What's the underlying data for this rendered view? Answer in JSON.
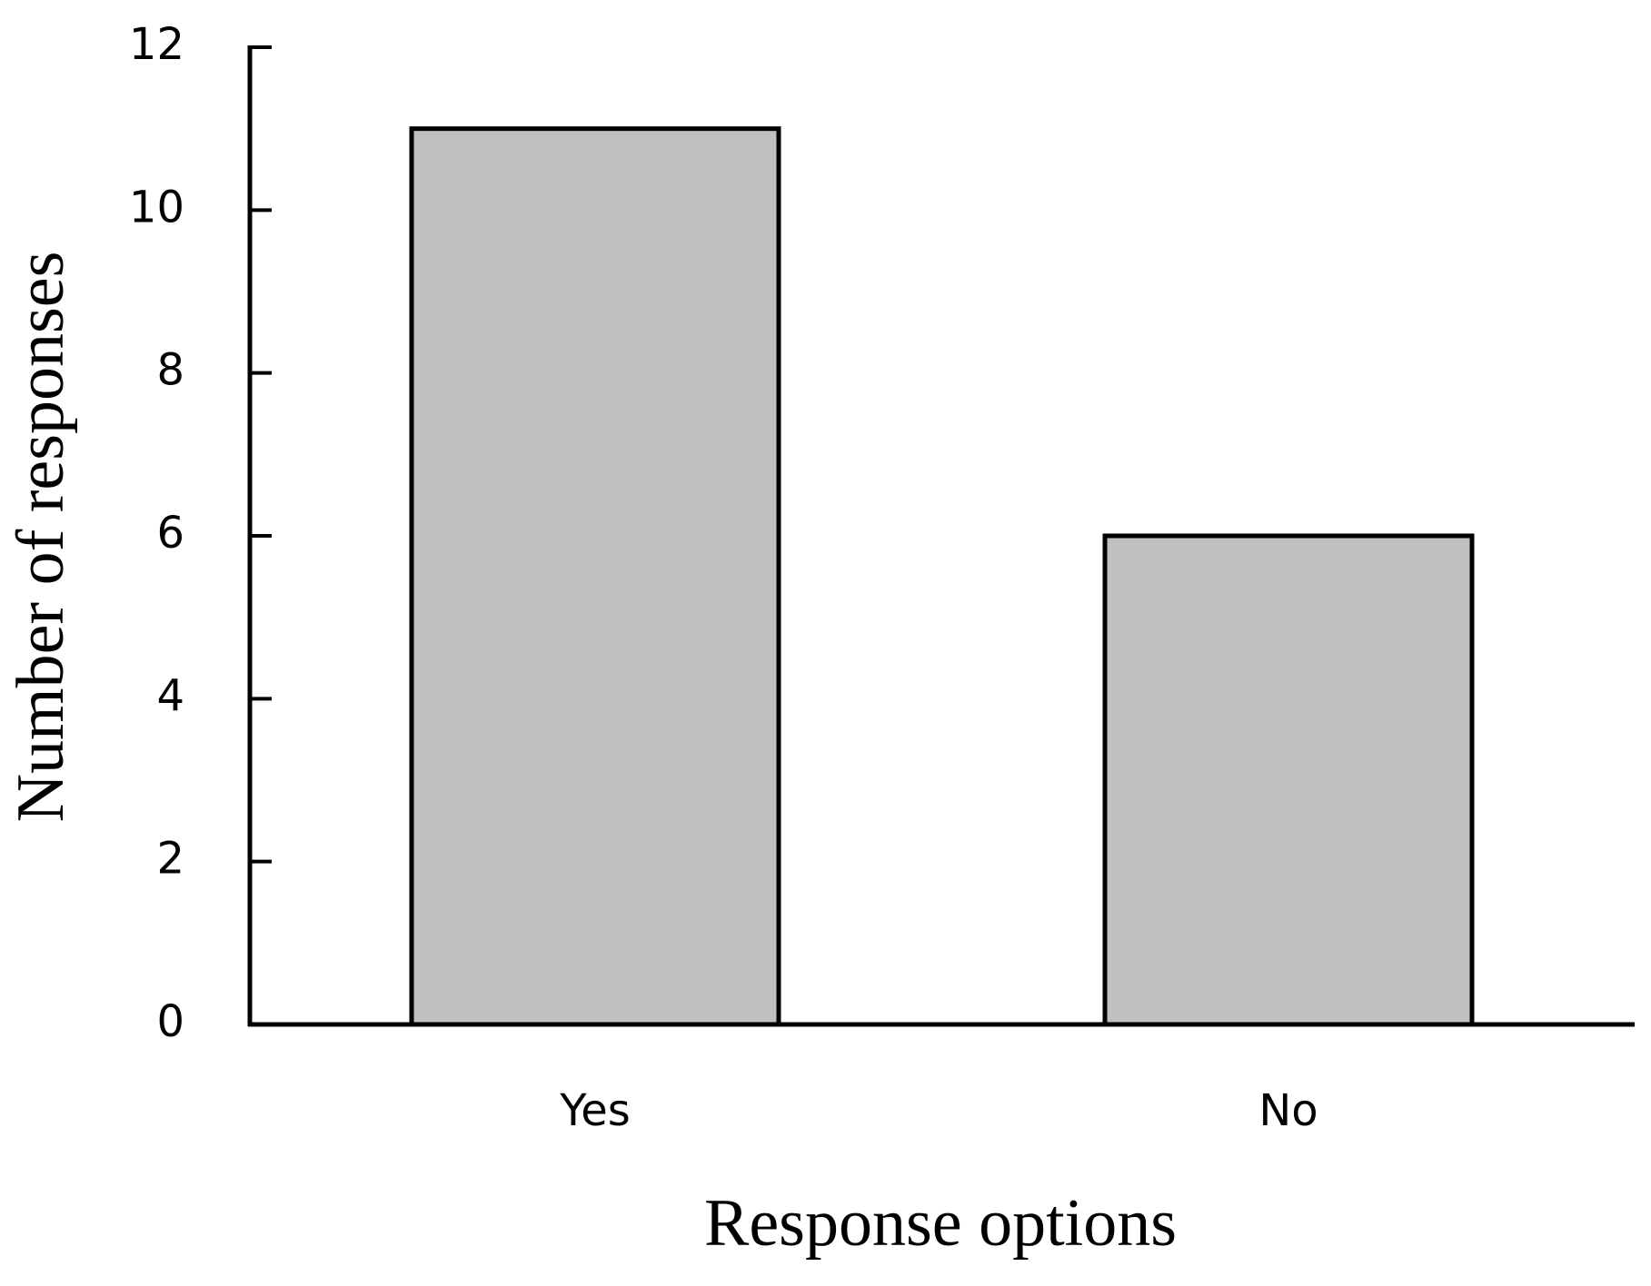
{
  "chart_data": {
    "type": "bar",
    "x_label": "Response options",
    "y_label": "Number of responses",
    "categories": [
      "Yes",
      "No"
    ],
    "values": [
      11,
      6
    ],
    "color": "#c0c0c0",
    "ylim": [
      0,
      12
    ],
    "yticks": [
      0,
      2,
      4,
      6,
      8,
      10,
      12
    ],
    "grid": false
  }
}
